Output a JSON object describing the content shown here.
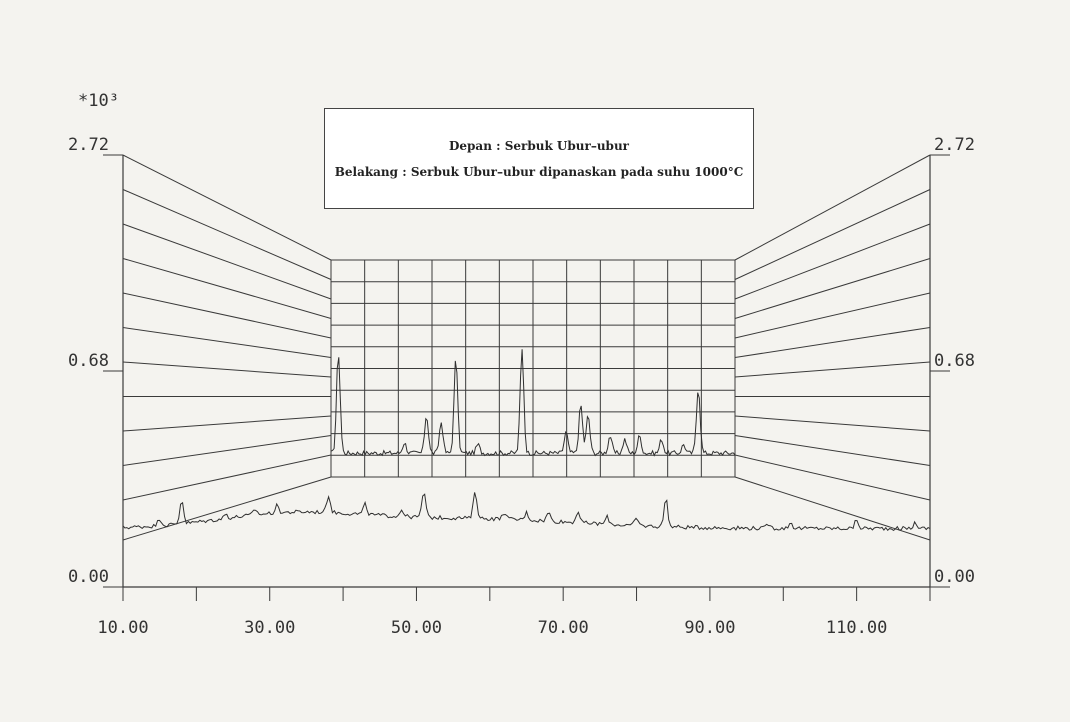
{
  "chart_data": {
    "type": "line",
    "variant": "3d-stacked-diffractogram",
    "y_multiplier_label": "*10³",
    "xlim": [
      10,
      120
    ],
    "ylim": [
      0,
      2.72
    ],
    "x_ticks": [
      10,
      30,
      50,
      70,
      90,
      110
    ],
    "x_tick_labels": [
      "10.00",
      "30.00",
      "50.00",
      "70.00",
      "90.00",
      "110.00"
    ],
    "y_tick_labels": [
      "2.72",
      "0.68",
      "0.00"
    ],
    "y_right_tick_labels": [
      "2.72",
      "0.68",
      "0.00"
    ],
    "legend_lines": [
      "Depan : Serbuk Ubur–ubur",
      "Belakang : Serbuk Ubur–ubur dipanaskan pada suhu 1000°C"
    ],
    "colors": {
      "line": "#3a3a3a",
      "background": "#f4f3ef"
    },
    "series": [
      {
        "name": "Depan : Serbuk Ubur–ubur",
        "position": "front",
        "baseline": 0.4,
        "peaks": [
          [
            15,
            0.05
          ],
          [
            18,
            0.17
          ],
          [
            24,
            0.03
          ],
          [
            28,
            0.04
          ],
          [
            31,
            0.05
          ],
          [
            38,
            0.12
          ],
          [
            43,
            0.07
          ],
          [
            48,
            0.05
          ],
          [
            51,
            0.18
          ],
          [
            58,
            0.19
          ],
          [
            62,
            0.05
          ],
          [
            65,
            0.05
          ],
          [
            68,
            0.06
          ],
          [
            72,
            0.08
          ],
          [
            76,
            0.05
          ],
          [
            80,
            0.05
          ],
          [
            84,
            0.2
          ],
          [
            98,
            0.03
          ],
          [
            101,
            0.04
          ],
          [
            110,
            0.06
          ],
          [
            118,
            0.04
          ]
        ]
      },
      {
        "name": "Belakang : Serbuk Ubur–ubur dipanaskan pada suhu 1000°C",
        "position": "back",
        "baseline": 0.52,
        "peaks": [
          [
            39,
            0.58
          ],
          [
            48,
            0.06
          ],
          [
            51,
            0.22
          ],
          [
            53,
            0.18
          ],
          [
            55,
            0.55
          ],
          [
            58,
            0.05
          ],
          [
            64,
            0.6
          ],
          [
            70,
            0.12
          ],
          [
            72,
            0.28
          ],
          [
            73,
            0.22
          ],
          [
            76,
            0.1
          ],
          [
            78,
            0.08
          ],
          [
            80,
            0.1
          ],
          [
            83,
            0.08
          ],
          [
            86,
            0.05
          ],
          [
            88,
            0.38
          ]
        ]
      }
    ]
  }
}
